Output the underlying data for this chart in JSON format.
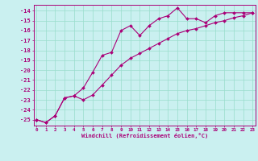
{
  "xlabel": "Windchill (Refroidissement éolien,°C)",
  "bg_color": "#caf0f0",
  "line_color": "#aa0077",
  "grid_color": "#99ddcc",
  "x_min": 0,
  "x_max": 23,
  "y_min": -25.6,
  "y_max": -13.4,
  "yticks": [
    -25,
    -24,
    -23,
    -22,
    -21,
    -20,
    -19,
    -18,
    -17,
    -16,
    -15,
    -14
  ],
  "line1_x": [
    0,
    1,
    2,
    3,
    4,
    5,
    6,
    7,
    8,
    9,
    10,
    11,
    12,
    13,
    14,
    15,
    16,
    17,
    18,
    19,
    20,
    21,
    22,
    23
  ],
  "line1_y": [
    -25.0,
    -25.3,
    -24.6,
    -22.8,
    -22.6,
    -21.8,
    -20.2,
    -18.5,
    -18.2,
    -16.0,
    -15.5,
    -16.5,
    -15.5,
    -14.8,
    -14.5,
    -13.7,
    -14.8,
    -14.8,
    -15.2,
    -14.5,
    -14.2,
    -14.2,
    -14.2,
    -14.2
  ],
  "line2_x": [
    0,
    1,
    2,
    3,
    4,
    5,
    6,
    7,
    8,
    9,
    10,
    11,
    12,
    13,
    14,
    15,
    16,
    17,
    18,
    19,
    20,
    21,
    22,
    23
  ],
  "line2_y": [
    -25.0,
    -25.3,
    -24.6,
    -22.8,
    -22.6,
    -23.0,
    -22.5,
    -21.5,
    -20.5,
    -19.5,
    -18.8,
    -18.3,
    -17.8,
    -17.3,
    -16.8,
    -16.3,
    -16.0,
    -15.8,
    -15.5,
    -15.2,
    -15.0,
    -14.7,
    -14.5,
    -14.2
  ],
  "figwidth": 3.2,
  "figheight": 2.0,
  "dpi": 100
}
